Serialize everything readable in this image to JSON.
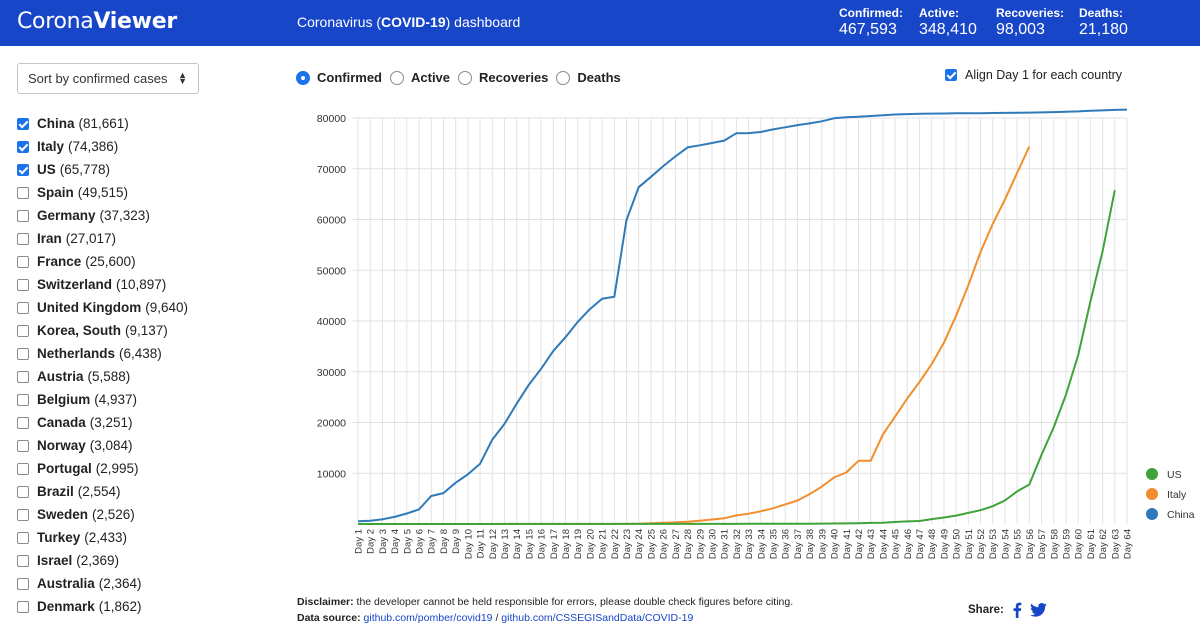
{
  "header": {
    "brand_prefix": "Corona",
    "brand_suffix": "Viewer",
    "subtitle_pre": "Coronavirus (",
    "subtitle_bold": "COVID-19",
    "subtitle_post": ") dashboard",
    "stats": [
      {
        "label": "Confirmed:",
        "value": "467,593"
      },
      {
        "label": "Active:",
        "value": "348,410"
      },
      {
        "label": "Recoveries:",
        "value": "98,003"
      },
      {
        "label": "Deaths:",
        "value": "21,180"
      }
    ]
  },
  "sidebar": {
    "sort_label": "Sort by confirmed cases",
    "countries": [
      {
        "name": "China",
        "count": "(81,661)",
        "checked": true
      },
      {
        "name": "Italy",
        "count": "(74,386)",
        "checked": true
      },
      {
        "name": "US",
        "count": "(65,778)",
        "checked": true
      },
      {
        "name": "Spain",
        "count": "(49,515)",
        "checked": false
      },
      {
        "name": "Germany",
        "count": "(37,323)",
        "checked": false
      },
      {
        "name": "Iran",
        "count": "(27,017)",
        "checked": false
      },
      {
        "name": "France",
        "count": "(25,600)",
        "checked": false
      },
      {
        "name": "Switzerland",
        "count": "(10,897)",
        "checked": false
      },
      {
        "name": "United Kingdom",
        "count": "(9,640)",
        "checked": false
      },
      {
        "name": "Korea, South",
        "count": "(9,137)",
        "checked": false
      },
      {
        "name": "Netherlands",
        "count": "(6,438)",
        "checked": false
      },
      {
        "name": "Austria",
        "count": "(5,588)",
        "checked": false
      },
      {
        "name": "Belgium",
        "count": "(4,937)",
        "checked": false
      },
      {
        "name": "Canada",
        "count": "(3,251)",
        "checked": false
      },
      {
        "name": "Norway",
        "count": "(3,084)",
        "checked": false
      },
      {
        "name": "Portugal",
        "count": "(2,995)",
        "checked": false
      },
      {
        "name": "Brazil",
        "count": "(2,554)",
        "checked": false
      },
      {
        "name": "Sweden",
        "count": "(2,526)",
        "checked": false
      },
      {
        "name": "Turkey",
        "count": "(2,433)",
        "checked": false
      },
      {
        "name": "Israel",
        "count": "(2,369)",
        "checked": false
      },
      {
        "name": "Australia",
        "count": "(2,364)",
        "checked": false
      },
      {
        "name": "Denmark",
        "count": "(1,862)",
        "checked": false
      }
    ]
  },
  "controls": {
    "metrics": [
      {
        "label": "Confirmed",
        "selected": true
      },
      {
        "label": "Active",
        "selected": false
      },
      {
        "label": "Recoveries",
        "selected": false
      },
      {
        "label": "Deaths",
        "selected": false
      }
    ],
    "align_label": "Align Day 1 for each country",
    "align_checked": true
  },
  "footer": {
    "disclaimer_label": "Disclaimer:",
    "disclaimer_text": " the developer cannot be held responsible for errors, please double check figures before citing.",
    "source_label": "Data source:",
    "source_link1": "github.com/pomber/covid19",
    "source_sep": " / ",
    "source_link2": "github.com/CSSEGISandData/COVID-19",
    "share_label": "Share:"
  },
  "colors": {
    "header_bg": "#1846c9",
    "china": "#2f7ab9",
    "italy": "#f28e2c",
    "us": "#3fa33a"
  },
  "chart_data": {
    "type": "line",
    "title": "",
    "xlabel": "",
    "ylabel": "",
    "ylim": [
      0,
      80000
    ],
    "yticks": [
      10000,
      20000,
      30000,
      40000,
      50000,
      60000,
      70000,
      80000
    ],
    "x_prefix": "Day ",
    "x_count": 64,
    "grid": true,
    "legend_position": "bottom-right",
    "legend": [
      "US",
      "Italy",
      "China"
    ],
    "series": [
      {
        "name": "China",
        "color": "#2f7ab9",
        "values": [
          548,
          643,
          920,
          1406,
          2075,
          2877,
          5509,
          6087,
          8141,
          9802,
          11891,
          16630,
          19716,
          23707,
          27440,
          30587,
          34110,
          36814,
          39829,
          42354,
          44386,
          44759,
          59895,
          66358,
          68413,
          70513,
          72434,
          74211,
          74619,
          75077,
          75550,
          77001,
          77022,
          77241,
          77754,
          78166,
          78600,
          78928,
          79356,
          79932,
          80136,
          80261,
          80386,
          80537,
          80690,
          80770,
          80823,
          80860,
          80887,
          80921,
          80932,
          80945,
          80977,
          81003,
          81033,
          81058,
          81102,
          81156,
          81250,
          81305,
          81435,
          81498,
          81591,
          81661
        ]
      },
      {
        "name": "Italy",
        "color": "#f28e2c",
        "values": [
          0,
          0,
          0,
          0,
          0,
          0,
          0,
          0,
          0,
          0,
          0,
          0,
          0,
          0,
          0,
          0,
          0,
          0,
          0,
          0,
          0,
          0,
          20,
          62,
          155,
          229,
          322,
          453,
          655,
          888,
          1128,
          1694,
          2036,
          2502,
          3089,
          3858,
          4636,
          5883,
          7375,
          9172,
          10149,
          12462,
          12462,
          17660,
          21157,
          24747,
          27980,
          31506,
          35713,
          41035,
          47021,
          53578,
          59138,
          63927,
          69176,
          74386
        ]
      },
      {
        "name": "US",
        "color": "#3fa33a",
        "values": [
          1,
          1,
          2,
          2,
          5,
          5,
          5,
          5,
          5,
          7,
          8,
          8,
          11,
          11,
          11,
          11,
          11,
          11,
          11,
          11,
          12,
          12,
          13,
          13,
          13,
          13,
          13,
          13,
          13,
          15,
          15,
          15,
          51,
          51,
          57,
          58,
          60,
          68,
          74,
          98,
          118,
          149,
          217,
          262,
          402,
          518,
          583,
          959,
          1281,
          1663,
          2179,
          2727,
          3499,
          4632,
          6421,
          7786,
          13680,
          19101,
          25493,
          33276,
          43847,
          53740,
          65778
        ]
      }
    ]
  }
}
